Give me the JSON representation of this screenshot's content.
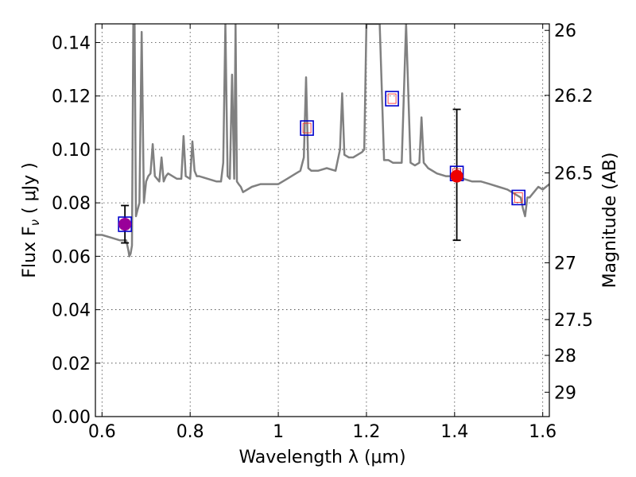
{
  "chart_data": {
    "type": "line",
    "xlabel": "Wavelength  λ (μm)",
    "ylabel": "Flux  F",
    "ylabel_subscript": "ν",
    "ylabel_units": "( μJy )",
    "y2label": "Magnitude (AB)",
    "xlim": [
      0.585,
      1.615
    ],
    "ylim": [
      0.0,
      0.147
    ],
    "xticks": [
      {
        "value": 0.6,
        "label": "0.6"
      },
      {
        "value": 0.8,
        "label": "0.8"
      },
      {
        "value": 1.0,
        "label": "1"
      },
      {
        "value": 1.2,
        "label": "1.2"
      },
      {
        "value": 1.4,
        "label": "1.4"
      },
      {
        "value": 1.6,
        "label": "1.6"
      }
    ],
    "yticks": [
      {
        "value": 0.0,
        "label": "0.00"
      },
      {
        "value": 0.02,
        "label": "0.02"
      },
      {
        "value": 0.04,
        "label": "0.04"
      },
      {
        "value": 0.06,
        "label": "0.06"
      },
      {
        "value": 0.08,
        "label": "0.08"
      },
      {
        "value": 0.1,
        "label": "0.10"
      },
      {
        "value": 0.12,
        "label": "0.12"
      },
      {
        "value": 0.14,
        "label": "0.14"
      }
    ],
    "y2ticks": [
      {
        "value": 26,
        "label": "26"
      },
      {
        "value": 26.2,
        "label": "26.2"
      },
      {
        "value": 26.5,
        "label": "26.5"
      },
      {
        "value": 27,
        "label": "27"
      },
      {
        "value": 27.5,
        "label": "27.5"
      },
      {
        "value": 28,
        "label": "28"
      },
      {
        "value": 29,
        "label": "29"
      }
    ],
    "grid": true,
    "colors": {
      "spectrum": "#808080",
      "model_box": "#0000cc",
      "model_inner": "#ff2222",
      "observed": "#ee0000",
      "observed_alt": "#990099",
      "errorbar": "#000000"
    },
    "spectrum": {
      "x": [
        0.585,
        0.6,
        0.62,
        0.64,
        0.655,
        0.66,
        0.662,
        0.665,
        0.668,
        0.671,
        0.674,
        0.677,
        0.68,
        0.685,
        0.69,
        0.695,
        0.7,
        0.705,
        0.71,
        0.715,
        0.72,
        0.725,
        0.73,
        0.735,
        0.74,
        0.745,
        0.75,
        0.76,
        0.77,
        0.78,
        0.785,
        0.79,
        0.8,
        0.805,
        0.81,
        0.815,
        0.82,
        0.84,
        0.86,
        0.87,
        0.875,
        0.88,
        0.885,
        0.89,
        0.895,
        0.9,
        0.903,
        0.906,
        0.91,
        0.915,
        0.92,
        0.94,
        0.96,
        0.98,
        1.0,
        1.02,
        1.04,
        1.05,
        1.058,
        1.063,
        1.068,
        1.075,
        1.09,
        1.11,
        1.13,
        1.14,
        1.145,
        1.15,
        1.16,
        1.17,
        1.18,
        1.19,
        1.195,
        1.2,
        1.205,
        1.21,
        1.22,
        1.23,
        1.24,
        1.25,
        1.26,
        1.27,
        1.28,
        1.29,
        1.3,
        1.31,
        1.32,
        1.325,
        1.33,
        1.335,
        1.34,
        1.36,
        1.38,
        1.4,
        1.42,
        1.44,
        1.46,
        1.48,
        1.5,
        1.52,
        1.54,
        1.55,
        1.555,
        1.56,
        1.565,
        1.57,
        1.58,
        1.59,
        1.6,
        1.615
      ],
      "y": [
        0.068,
        0.068,
        0.067,
        0.066,
        0.066,
        0.062,
        0.06,
        0.061,
        0.064,
        0.147,
        0.147,
        0.075,
        0.077,
        0.08,
        0.144,
        0.08,
        0.088,
        0.09,
        0.091,
        0.102,
        0.09,
        0.089,
        0.088,
        0.097,
        0.088,
        0.09,
        0.091,
        0.09,
        0.089,
        0.089,
        0.105,
        0.09,
        0.089,
        0.103,
        0.092,
        0.09,
        0.09,
        0.089,
        0.088,
        0.088,
        0.095,
        0.147,
        0.09,
        0.089,
        0.128,
        0.089,
        0.147,
        0.088,
        0.087,
        0.086,
        0.084,
        0.086,
        0.087,
        0.087,
        0.087,
        0.089,
        0.091,
        0.092,
        0.097,
        0.127,
        0.093,
        0.092,
        0.092,
        0.093,
        0.092,
        0.1,
        0.121,
        0.098,
        0.097,
        0.097,
        0.098,
        0.099,
        0.1,
        0.147,
        0.147,
        0.147,
        0.147,
        0.147,
        0.096,
        0.096,
        0.095,
        0.095,
        0.095,
        0.147,
        0.095,
        0.094,
        0.095,
        0.112,
        0.095,
        0.094,
        0.093,
        0.091,
        0.09,
        0.09,
        0.089,
        0.088,
        0.088,
        0.087,
        0.086,
        0.085,
        0.083,
        0.082,
        0.078,
        0.075,
        0.082,
        0.082,
        0.084,
        0.086,
        0.085,
        0.087
      ]
    },
    "model_points": [
      {
        "x": 0.652,
        "y": 0.072
      },
      {
        "x": 1.065,
        "y": 0.108
      },
      {
        "x": 1.258,
        "y": 0.119
      },
      {
        "x": 1.405,
        "y": 0.091
      },
      {
        "x": 1.545,
        "y": 0.082
      }
    ],
    "observed_points": [
      {
        "x": 0.652,
        "y": 0.072,
        "yerr_low": 0.065,
        "yerr_high": 0.079,
        "color": "#990099"
      },
      {
        "x": 1.405,
        "y": 0.09,
        "yerr_low": 0.066,
        "yerr_high": 0.115,
        "color": "#ee0000"
      }
    ]
  }
}
